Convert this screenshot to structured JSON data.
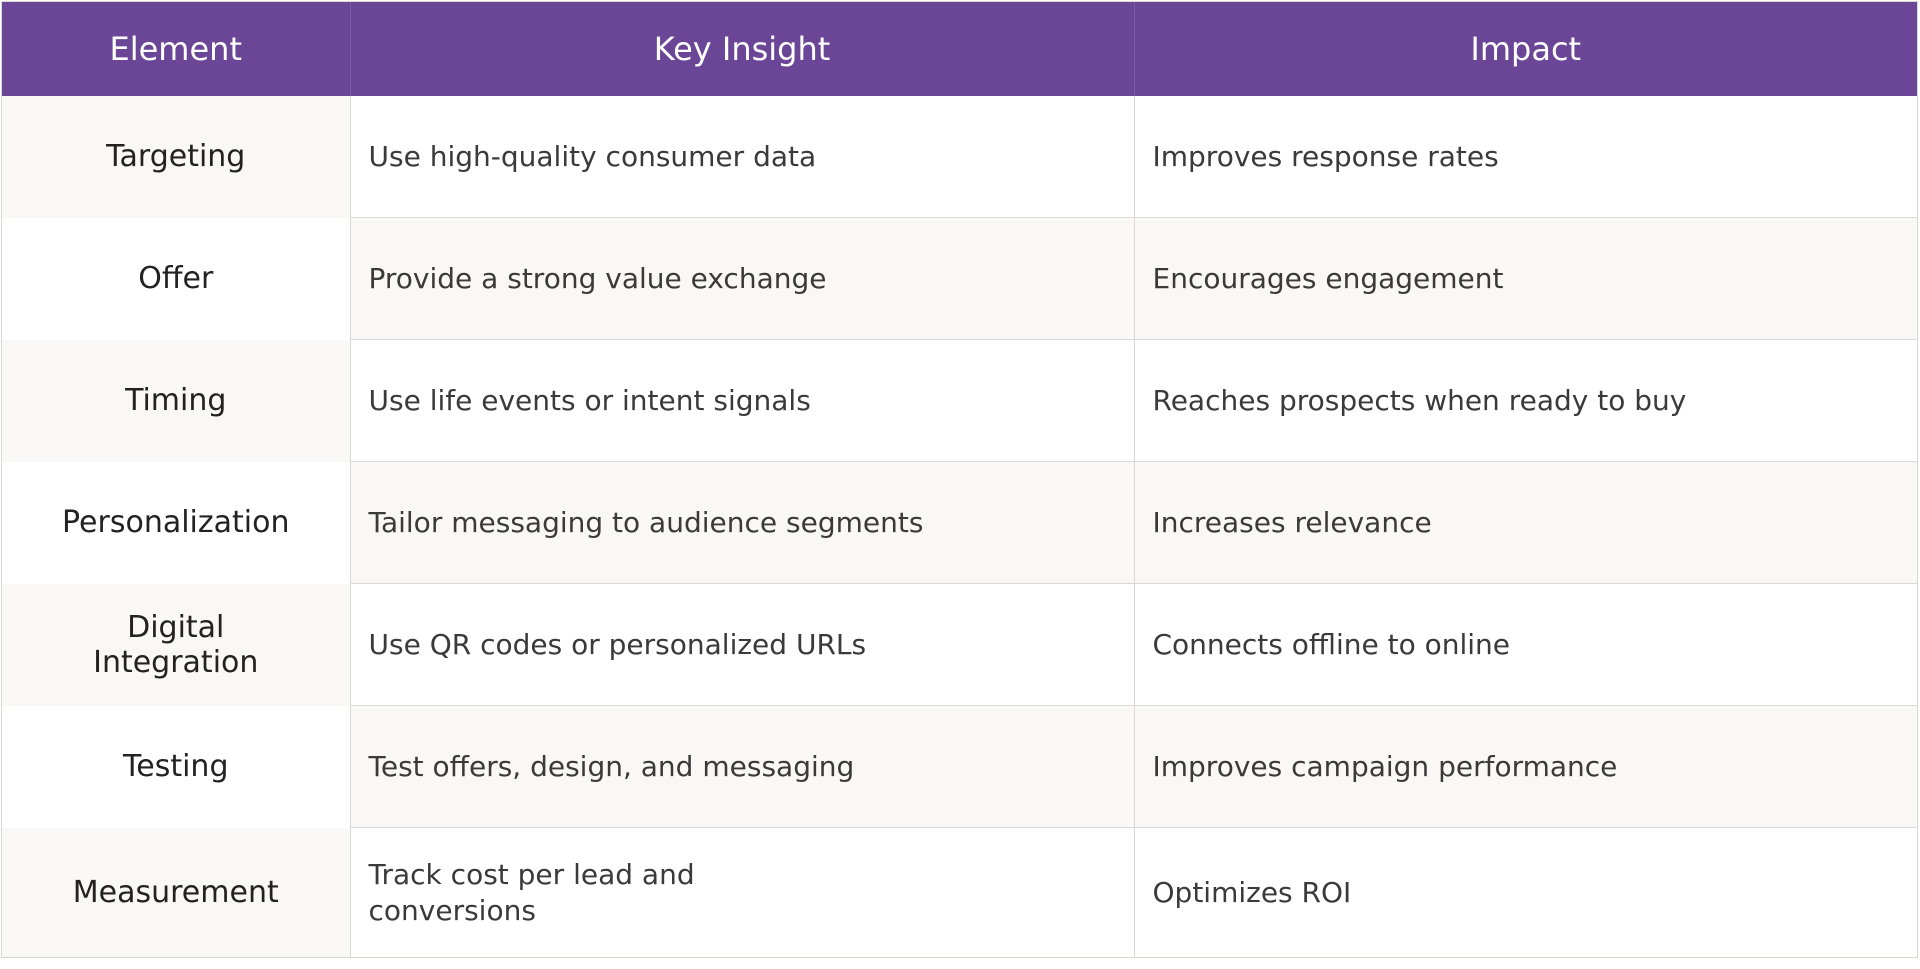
{
  "table": {
    "headers": {
      "element": "Element",
      "insight": "Key Insight",
      "impact": "Impact"
    },
    "rows": [
      {
        "element": "Targeting",
        "insight": "Use high-quality consumer data",
        "impact": "Improves response rates"
      },
      {
        "element": "Offer",
        "insight": "Provide a strong value exchange",
        "impact": "Encourages engagement"
      },
      {
        "element": "Timing",
        "insight": "Use life events or intent signals",
        "impact": "Reaches prospects when ready to buy"
      },
      {
        "element": "Personalization",
        "insight": "Tailor messaging to audience segments",
        "impact": "Increases relevance"
      },
      {
        "element": "Digital Integration",
        "insight": "Use QR codes or personalized URLs",
        "impact": "Connects offline to online"
      },
      {
        "element": "Testing",
        "insight": "Test offers, design, and messaging",
        "impact": "Improves campaign performance"
      },
      {
        "element": "Measurement",
        "insight": "Track cost per lead and conversions",
        "impact": "Optimizes ROI"
      }
    ]
  },
  "colors": {
    "header_bg": "#6b4596",
    "header_text": "#ffffff",
    "stripe": "#f9f8f7",
    "border": "#dcd7d3"
  }
}
